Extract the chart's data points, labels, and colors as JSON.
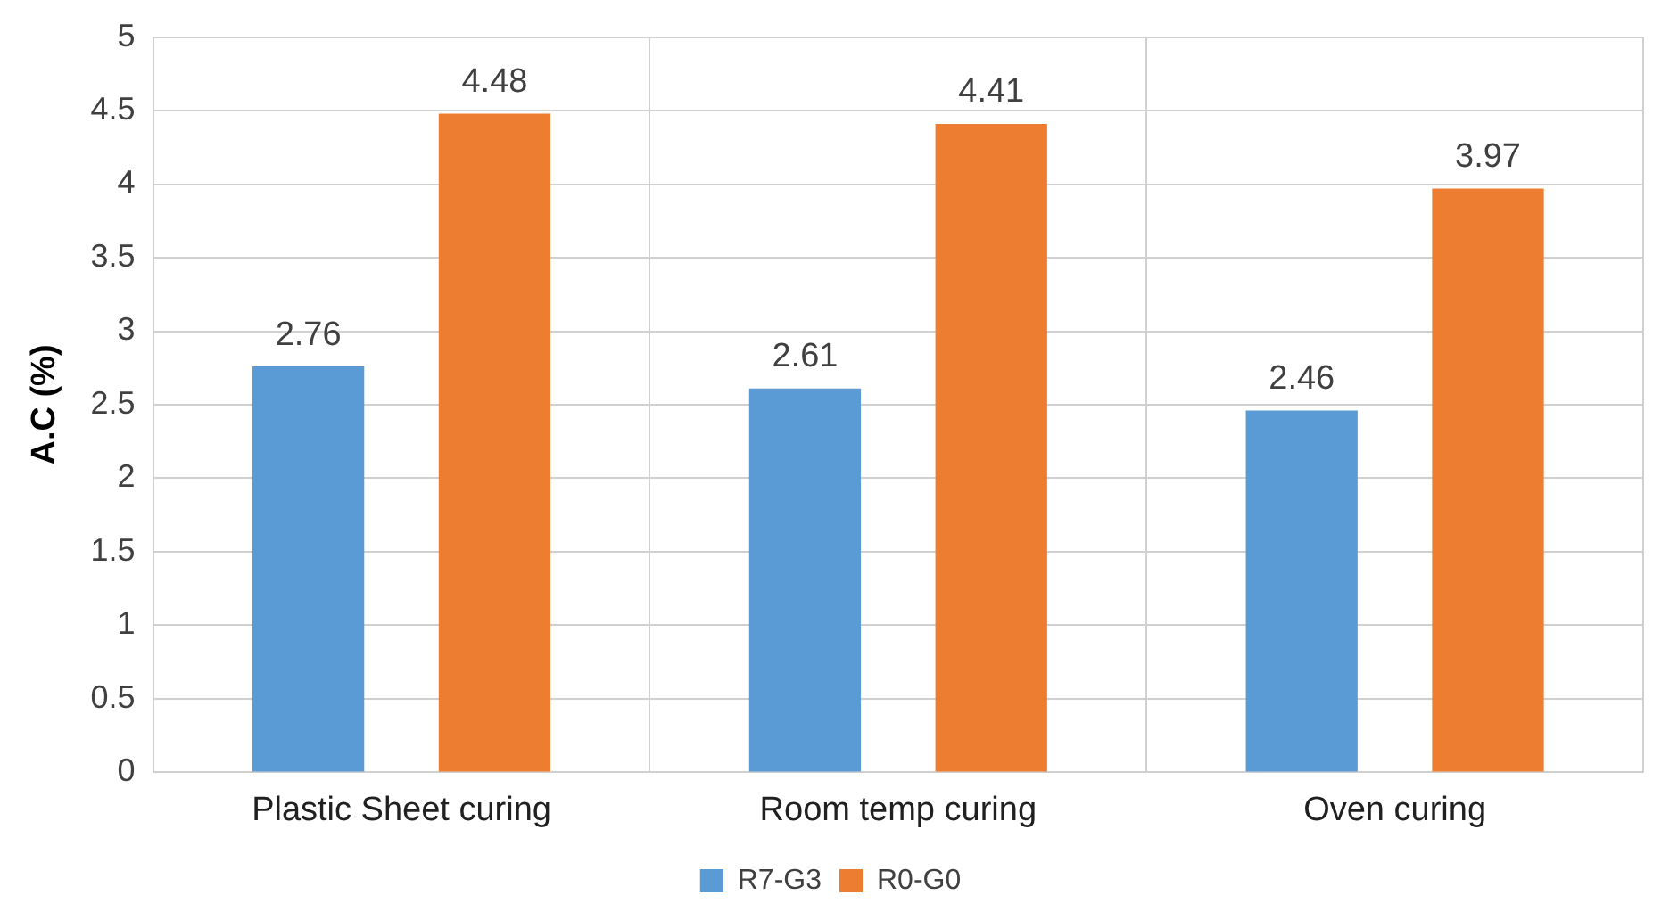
{
  "chart_data": {
    "type": "bar",
    "ylabel": "A.C (%)",
    "categories": [
      "Plastic Sheet curing",
      "Room temp curing",
      "Oven curing"
    ],
    "series": [
      {
        "name": "R7-G3",
        "color": "#5b9bd5",
        "values": [
          2.76,
          2.61,
          2.46
        ]
      },
      {
        "name": "R0-G0",
        "color": "#ed7d31",
        "values": [
          4.48,
          4.41,
          3.97
        ]
      }
    ],
    "ylim": [
      0,
      5
    ],
    "yticks": [
      0,
      0.5,
      1,
      1.5,
      2,
      2.5,
      3,
      3.5,
      4,
      4.5,
      5
    ],
    "grid": true,
    "legend": "bottom",
    "data_labels": true
  }
}
